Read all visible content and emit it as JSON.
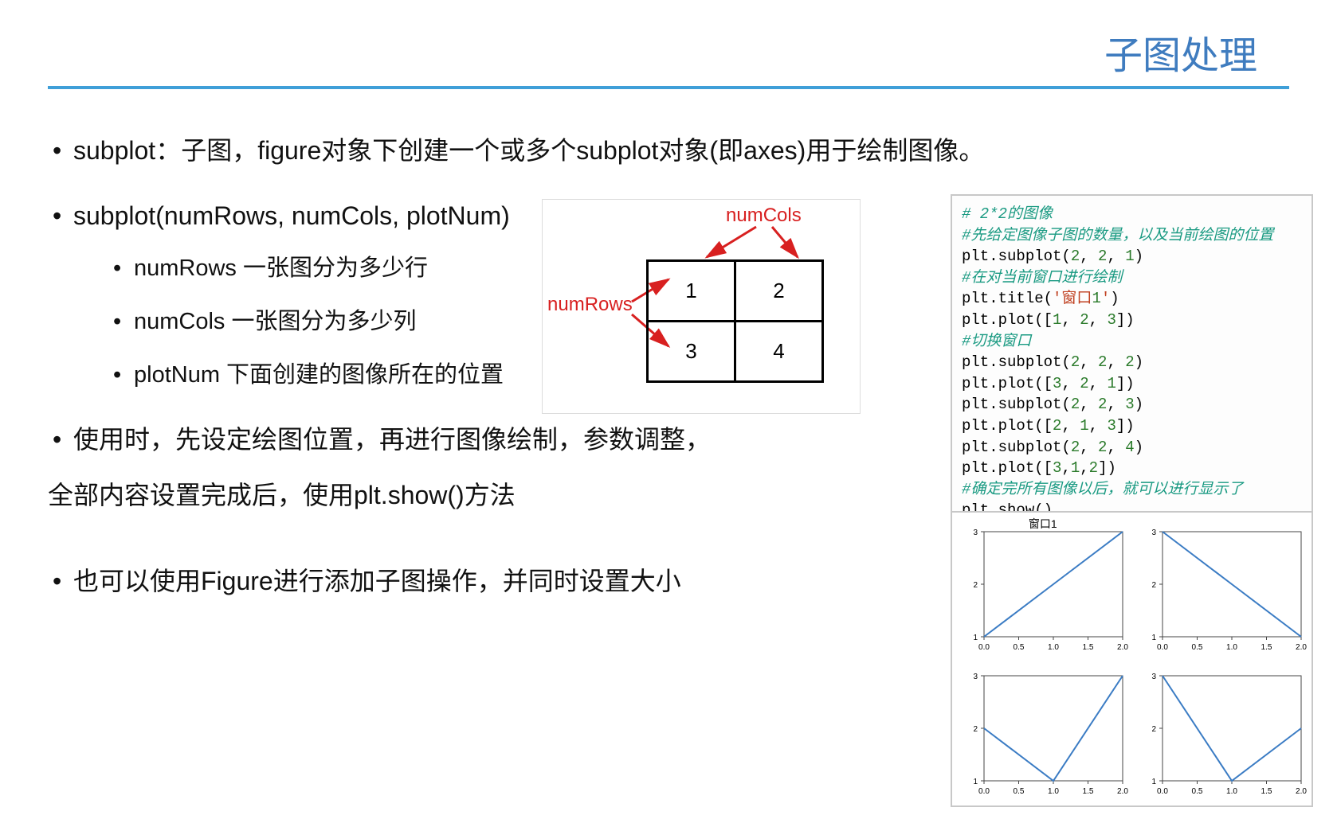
{
  "slide": {
    "title": "子图处理",
    "title_color": "#3f7cbf",
    "rule_color": "#3f9fd8"
  },
  "bullets": {
    "b1": "subplot：子图，figure对象下创建一个或多个subplot对象(即axes)用于绘制图像。",
    "b2": "subplot(numRows, numCols, plotNum)",
    "b2_subs": {
      "s1": "numRows 一张图分为多少行",
      "s2": "numCols 一张图分为多少列",
      "s3": "plotNum 下面创建的图像所在的位置"
    },
    "b3": "使用时，先设定绘图位置，再进行图像绘制，参数调整，",
    "b3_cont": "全部内容设置完成后，使用plt.show()方法",
    "b4": "也可以使用Figure进行添加子图操作，并同时设置大小"
  },
  "diagram": {
    "cols_label": "numCols",
    "rows_label": "numRows",
    "label_color": "#d82020",
    "arrow_color": "#d82020",
    "cell_border_color": "#000000",
    "cells": [
      "1",
      "2",
      "3",
      "4"
    ]
  },
  "code": {
    "comment_color": "#1a9a82",
    "number_color": "#2a7a2a",
    "string_color": "#c04020",
    "lines": [
      {
        "t": "cmt",
        "text": "# 2*2的图像"
      },
      {
        "t": "cmt",
        "text": "#先给定图像子图的数量，以及当前绘图的位置"
      },
      {
        "t": "code",
        "text": "plt.subplot(2, 2, 1)"
      },
      {
        "t": "cmt",
        "text": "#在对当前窗口进行绘制"
      },
      {
        "t": "code",
        "text": "plt.title('窗口1')"
      },
      {
        "t": "code",
        "text": "plt.plot([1, 2, 3])"
      },
      {
        "t": "cmt",
        "text": "#切换窗口"
      },
      {
        "t": "code",
        "text": "plt.subplot(2, 2, 2)"
      },
      {
        "t": "code",
        "text": "plt.plot([3, 2, 1])"
      },
      {
        "t": "code",
        "text": "plt.subplot(2, 2, 3)"
      },
      {
        "t": "code",
        "text": "plt.plot([2, 1, 3])"
      },
      {
        "t": "code",
        "text": "plt.subplot(2, 2, 4)"
      },
      {
        "t": "code",
        "text": "plt.plot([3,1,2])"
      },
      {
        "t": "cmt",
        "text": "#确定完所有图像以后，就可以进行显示了"
      },
      {
        "t": "code",
        "text": "plt.show()"
      }
    ]
  },
  "plots": {
    "line_color": "#3b7cc4",
    "axis_color": "#444444",
    "grid_color": "#e5e5e5",
    "tick_fontsize": 10,
    "xlim": [
      0,
      2
    ],
    "xticks": [
      0.0,
      0.5,
      1.0,
      1.5,
      2.0
    ],
    "panels": [
      {
        "title": "窗口1",
        "y": [
          1,
          2,
          3
        ],
        "ylim": [
          1,
          3
        ],
        "yticks": [
          1,
          2,
          3
        ]
      },
      {
        "title": "",
        "y": [
          3,
          2,
          1
        ],
        "ylim": [
          1,
          3
        ],
        "yticks": [
          1,
          2,
          3
        ]
      },
      {
        "title": "",
        "y": [
          2,
          1,
          3
        ],
        "ylim": [
          1,
          3
        ],
        "yticks": [
          1,
          2,
          3
        ]
      },
      {
        "title": "",
        "y": [
          3,
          1,
          2
        ],
        "ylim": [
          1,
          3
        ],
        "yticks": [
          1,
          2,
          3
        ]
      }
    ]
  }
}
